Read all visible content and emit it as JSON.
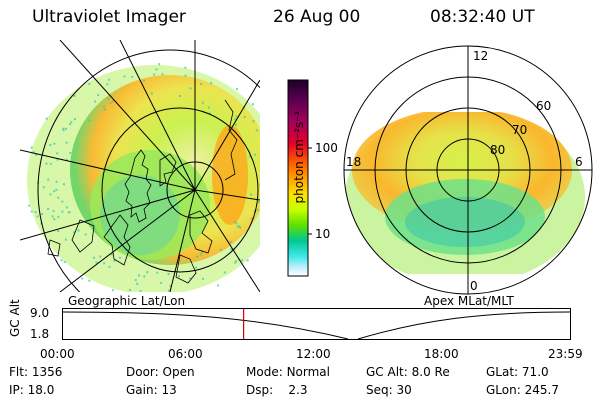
{
  "header": {
    "title": "Ultraviolet Imager",
    "date": "26 Aug 00",
    "time": "08:32:40 UT"
  },
  "left_map": {
    "label": "Geographic Lat/Lon"
  },
  "right_map": {
    "label": "Apex MLat/MLT",
    "mlt_labels": [
      "12",
      "18",
      "6",
      "0"
    ],
    "lat_labels": [
      "60",
      "70",
      "80"
    ]
  },
  "colorbar": {
    "unit_label": "photon cm⁻²s⁻¹",
    "ticks": [
      "100",
      "10"
    ],
    "scale": "log",
    "colors": [
      "#1a0028",
      "#5a0050",
      "#a8005a",
      "#e0002a",
      "#ff5a00",
      "#ffa000",
      "#ffe000",
      "#c8ff00",
      "#60e000",
      "#00c890",
      "#40e8e8",
      "#c8f0ff",
      "#ffffff"
    ]
  },
  "timeline": {
    "ylabel": "GC Alt",
    "y_ticks": [
      "9.0",
      "1.8"
    ],
    "x_ticks": [
      "00:00",
      "06:00",
      "12:00",
      "18:00",
      "23:59"
    ],
    "current_time_marker": "08:32:40",
    "marker_color": "#cc0000"
  },
  "info": {
    "flt_label": "Flt:",
    "flt_value": "1356",
    "ip_label": "IP:",
    "ip_value": "18.0",
    "door_label": "Door:",
    "door_value": "Open",
    "gain_label": "Gain:",
    "gain_value": "13",
    "mode_label": "Mode:",
    "mode_value": "Normal",
    "dsp_label": "Dsp:",
    "dsp_value": "2.3",
    "gcalt_label": "GC Alt:",
    "gcalt_value": "8.0 Re",
    "seq_label": "Seq:",
    "seq_value": "30",
    "glat_label": "GLat:",
    "glat_value": "71.0",
    "glon_label": "GLon:",
    "glon_value": "245.7"
  }
}
